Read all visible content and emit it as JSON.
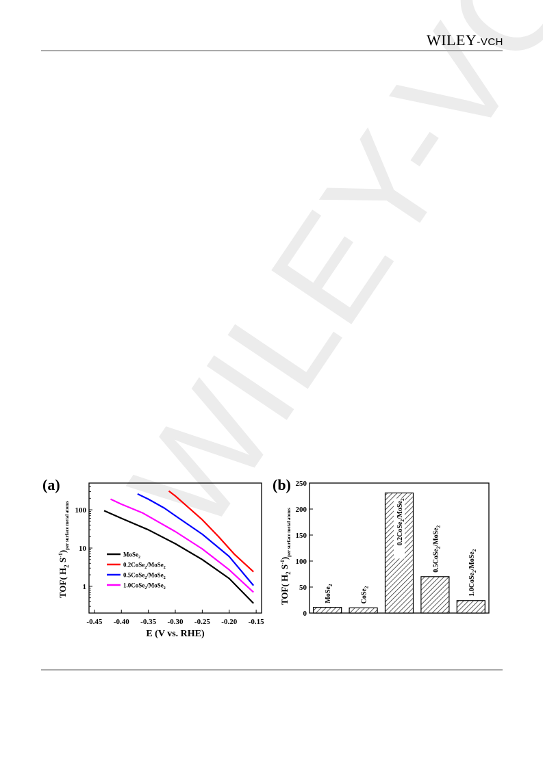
{
  "header": {
    "publisher_main": "WILEY",
    "publisher_sep": "-",
    "publisher_suffix": "VCH"
  },
  "watermark": {
    "text": "WILEY-VCH",
    "color": "#e8e8e8"
  },
  "figures": [
    {
      "panel_label": "(a)",
      "chart_data": {
        "type": "line",
        "xlabel": "E (V vs. RHE)",
        "ylabel": "TOF( H",
        "ylabel_sub": "2",
        "ylabel_mid": " S",
        "ylabel_sup": "-1",
        "ylabel_tail": ")",
        "ylabel_sub_tail": "per surface metal atoms",
        "xlim": [
          -0.46,
          -0.14
        ],
        "ylim": [
          0.2,
          500
        ],
        "yscale": "log",
        "xticks": [
          -0.45,
          -0.4,
          -0.35,
          -0.3,
          -0.25,
          -0.2,
          -0.15
        ],
        "xtick_labels": [
          "-0.45",
          "-0.40",
          "-0.35",
          "-0.30",
          "-0.25",
          "-0.20",
          "-0.15"
        ],
        "yticks": [
          1,
          10,
          100
        ],
        "ytick_labels": [
          "1",
          "10",
          "100"
        ],
        "legend_position": "bottom-left",
        "series": [
          {
            "name": "MoSe",
            "name_sub": "2",
            "name_tail": "",
            "color": "#000000",
            "x": [
              -0.432,
              -0.4,
              -0.35,
              -0.3,
              -0.25,
              -0.2,
              -0.155
            ],
            "y": [
              95,
              60,
              30,
              13,
              5,
              1.6,
              0.36
            ]
          },
          {
            "name": "0.2CoSe",
            "name_sub": "2",
            "name_tail": "/MoSe",
            "name_sub2": "2",
            "color": "#ff0000",
            "x": [
              -0.312,
              -0.3,
              -0.28,
              -0.25,
              -0.22,
              -0.19,
              -0.155
            ],
            "y": [
              310,
              230,
              130,
              55,
              20,
              6.8,
              2.4
            ]
          },
          {
            "name": "0.5CoSe",
            "name_sub": "2",
            "name_tail": "/MoSe",
            "name_sub2": "2",
            "color": "#0000ff",
            "x": [
              -0.37,
              -0.35,
              -0.32,
              -0.3,
              -0.25,
              -0.2,
              -0.155
            ],
            "y": [
              260,
              190,
              110,
              70,
              23,
              6,
              1.05
            ]
          },
          {
            "name": "1.0CoSe",
            "name_sub": "2",
            "name_tail": "/MoSe",
            "name_sub2": "2",
            "color": "#ff00ff",
            "x": [
              -0.42,
              -0.4,
              -0.36,
              -0.35,
              -0.3,
              -0.25,
              -0.2,
              -0.155
            ],
            "y": [
              190,
              140,
              82,
              68,
              27,
              9.5,
              2.7,
              0.7
            ]
          }
        ]
      }
    },
    {
      "panel_label": "(b)",
      "chart_data": {
        "type": "bar",
        "xlabel": "",
        "ylabel": "TOF( H",
        "ylabel_sub": "2",
        "ylabel_mid": " S",
        "ylabel_sup": "-1",
        "ylabel_tail": ")",
        "ylabel_sub_tail": "per surface metal atoms",
        "ylim": [
          0,
          250
        ],
        "yticks": [
          0,
          50,
          100,
          150,
          200,
          250
        ],
        "ytick_labels": [
          "0",
          "50",
          "100",
          "150",
          "200",
          "250"
        ],
        "categories": [
          {
            "main": "MoSe",
            "sub": "2",
            "tail": "",
            "sub2": ""
          },
          {
            "main": "CoSe",
            "sub": "2",
            "tail": "",
            "sub2": ""
          },
          {
            "main": "0.2CoSe",
            "sub": "2",
            "tail": "/MoSe",
            "sub2": "2"
          },
          {
            "main": "0.5CoSe",
            "sub": "2",
            "tail": "/MoSe",
            "sub2": "2"
          },
          {
            "main": "1.0CoSe",
            "sub": "2",
            "tail": "/MoSe",
            "sub2": "2"
          }
        ],
        "values": [
          11,
          10,
          231,
          70,
          24
        ],
        "bar_fill": "hatched",
        "grid": false
      }
    }
  ]
}
